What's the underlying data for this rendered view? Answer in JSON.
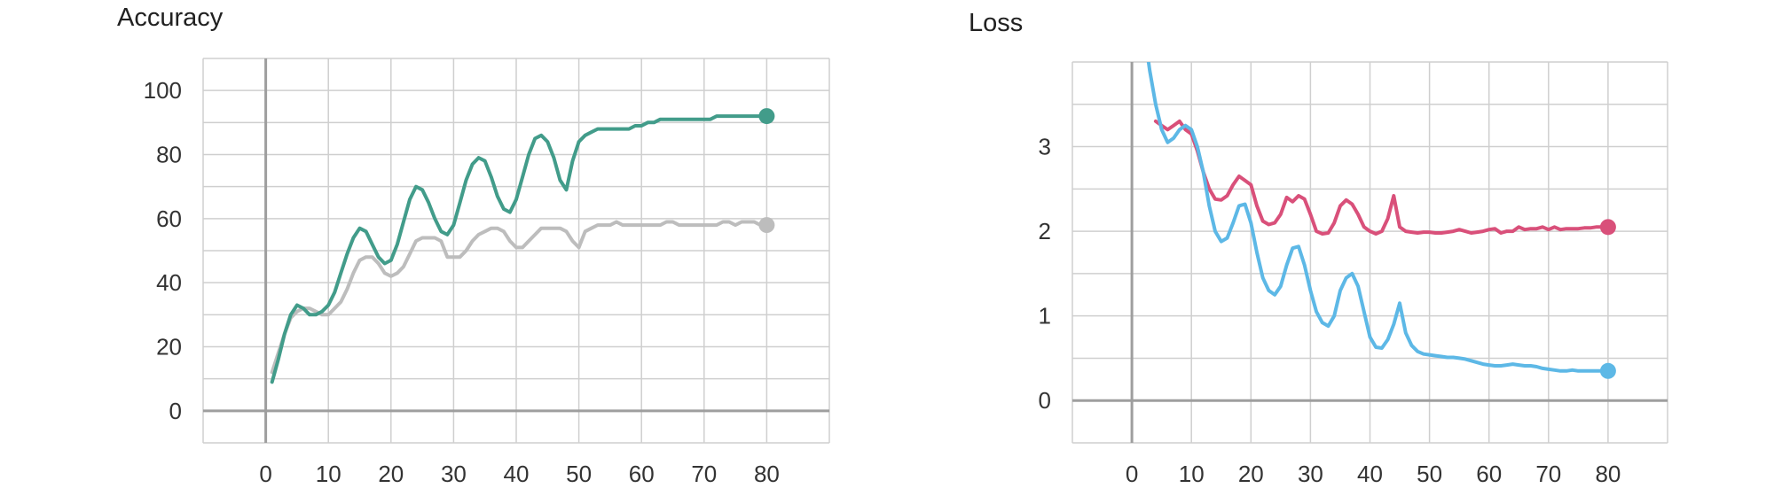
{
  "chart_data": [
    {
      "type": "line",
      "title": "Accuracy",
      "xlim": [
        -10,
        90
      ],
      "ylim": [
        -10,
        110
      ],
      "x_ticks": [
        0,
        10,
        20,
        30,
        40,
        50,
        60,
        70,
        80
      ],
      "y_ticks": [
        0,
        20,
        40,
        60,
        80,
        100
      ],
      "grid": true,
      "series": [
        {
          "color": "#bdbdbd",
          "x": [
            1,
            2,
            3,
            4,
            5,
            6,
            7,
            8,
            9,
            10,
            11,
            12,
            13,
            14,
            15,
            16,
            17,
            18,
            19,
            20,
            21,
            22,
            23,
            24,
            25,
            26,
            27,
            28,
            29,
            30,
            31,
            32,
            33,
            34,
            35,
            36,
            37,
            38,
            39,
            40,
            41,
            42,
            43,
            44,
            45,
            46,
            47,
            48,
            49,
            50,
            51,
            52,
            53,
            54,
            55,
            56,
            57,
            58,
            59,
            60,
            61,
            62,
            63,
            64,
            65,
            66,
            67,
            68,
            69,
            70,
            71,
            72,
            73,
            74,
            75,
            76,
            77,
            78,
            79,
            80
          ],
          "y": [
            12,
            18,
            24,
            29,
            31,
            32,
            32,
            31,
            30,
            30,
            32,
            34,
            38,
            43,
            47,
            48,
            48,
            46,
            43,
            42,
            43,
            45,
            49,
            53,
            54,
            54,
            54,
            53,
            48,
            48,
            48,
            50,
            53,
            55,
            56,
            57,
            57,
            56,
            53,
            51,
            51,
            53,
            55,
            57,
            57,
            57,
            57,
            56,
            53,
            51,
            56,
            57,
            58,
            58,
            58,
            59,
            58,
            58,
            58,
            58,
            58,
            58,
            58,
            59,
            59,
            58,
            58,
            58,
            58,
            58,
            58,
            58,
            59,
            59,
            58,
            59,
            59,
            59,
            58,
            58
          ]
        },
        {
          "color": "#429c8a",
          "x": [
            1,
            2,
            3,
            4,
            5,
            6,
            7,
            8,
            9,
            10,
            11,
            12,
            13,
            14,
            15,
            16,
            17,
            18,
            19,
            20,
            21,
            22,
            23,
            24,
            25,
            26,
            27,
            28,
            29,
            30,
            31,
            32,
            33,
            34,
            35,
            36,
            37,
            38,
            39,
            40,
            41,
            42,
            43,
            44,
            45,
            46,
            47,
            48,
            49,
            50,
            51,
            52,
            53,
            54,
            55,
            56,
            57,
            58,
            59,
            60,
            61,
            62,
            63,
            64,
            65,
            66,
            67,
            68,
            69,
            70,
            71,
            72,
            73,
            74,
            75,
            76,
            77,
            78,
            79,
            80
          ],
          "y": [
            9,
            16,
            24,
            30,
            33,
            32,
            30,
            30,
            31,
            33,
            37,
            43,
            49,
            54,
            57,
            56,
            52,
            48,
            46,
            47,
            52,
            59,
            66,
            70,
            69,
            65,
            60,
            56,
            55,
            58,
            65,
            72,
            77,
            79,
            78,
            73,
            67,
            63,
            62,
            66,
            73,
            80,
            85,
            86,
            84,
            79,
            72,
            69,
            78,
            84,
            86,
            87,
            88,
            88,
            88,
            88,
            88,
            88,
            89,
            89,
            90,
            90,
            91,
            91,
            91,
            91,
            91,
            91,
            91,
            91,
            91,
            92,
            92,
            92,
            92,
            92,
            92,
            92,
            92,
            92
          ]
        }
      ]
    },
    {
      "type": "line",
      "title": "Loss",
      "xlim": [
        -10,
        90
      ],
      "ylim": [
        -0.5,
        4
      ],
      "x_ticks": [
        0,
        10,
        20,
        30,
        40,
        50,
        60,
        70,
        80
      ],
      "y_ticks": [
        0,
        1,
        2,
        3
      ],
      "grid": true,
      "series": [
        {
          "color": "#d9507a",
          "x": [
            4,
            5,
            6,
            7,
            8,
            9,
            10,
            11,
            12,
            13,
            14,
            15,
            16,
            17,
            18,
            19,
            20,
            21,
            22,
            23,
            24,
            25,
            26,
            27,
            28,
            29,
            30,
            31,
            32,
            33,
            34,
            35,
            36,
            37,
            38,
            39,
            40,
            41,
            42,
            43,
            44,
            45,
            46,
            47,
            48,
            49,
            50,
            51,
            52,
            53,
            54,
            55,
            56,
            57,
            58,
            59,
            60,
            61,
            62,
            63,
            64,
            65,
            66,
            67,
            68,
            69,
            70,
            71,
            72,
            73,
            74,
            75,
            76,
            77,
            78,
            79,
            80
          ],
          "y": [
            3.3,
            3.25,
            3.2,
            3.25,
            3.3,
            3.2,
            3.15,
            2.95,
            2.7,
            2.5,
            2.38,
            2.37,
            2.42,
            2.55,
            2.65,
            2.6,
            2.55,
            2.3,
            2.12,
            2.08,
            2.1,
            2.2,
            2.4,
            2.35,
            2.42,
            2.38,
            2.2,
            2.0,
            1.97,
            1.98,
            2.1,
            2.3,
            2.37,
            2.32,
            2.2,
            2.05,
            2.0,
            1.97,
            2.0,
            2.15,
            2.42,
            2.05,
            2.0,
            1.99,
            1.98,
            1.99,
            1.99,
            1.98,
            1.98,
            1.99,
            2.0,
            2.02,
            2.0,
            1.98,
            1.99,
            2.0,
            2.02,
            2.03,
            1.98,
            2.0,
            2.0,
            2.05,
            2.02,
            2.03,
            2.03,
            2.05,
            2.02,
            2.05,
            2.02,
            2.03,
            2.03,
            2.03,
            2.04,
            2.04,
            2.05,
            2.05,
            2.05
          ]
        },
        {
          "color": "#5db8e6",
          "x": [
            1,
            2,
            3,
            4,
            5,
            6,
            7,
            8,
            9,
            10,
            11,
            12,
            13,
            14,
            15,
            16,
            17,
            18,
            19,
            20,
            21,
            22,
            23,
            24,
            25,
            26,
            27,
            28,
            29,
            30,
            31,
            32,
            33,
            34,
            35,
            36,
            37,
            38,
            39,
            40,
            41,
            42,
            43,
            44,
            45,
            46,
            47,
            48,
            49,
            50,
            51,
            52,
            53,
            54,
            55,
            56,
            57,
            58,
            59,
            60,
            61,
            62,
            63,
            64,
            65,
            66,
            67,
            68,
            69,
            70,
            71,
            72,
            73,
            74,
            75,
            76,
            77,
            78,
            79,
            80
          ],
          "y": [
            4.8,
            4.4,
            3.9,
            3.5,
            3.2,
            3.05,
            3.1,
            3.2,
            3.25,
            3.2,
            3.0,
            2.7,
            2.3,
            2.0,
            1.88,
            1.92,
            2.1,
            2.3,
            2.32,
            2.1,
            1.75,
            1.45,
            1.3,
            1.25,
            1.35,
            1.6,
            1.8,
            1.82,
            1.6,
            1.3,
            1.05,
            0.92,
            0.88,
            1.0,
            1.3,
            1.45,
            1.5,
            1.35,
            1.05,
            0.75,
            0.63,
            0.62,
            0.72,
            0.9,
            1.15,
            0.8,
            0.65,
            0.58,
            0.55,
            0.54,
            0.53,
            0.52,
            0.51,
            0.51,
            0.5,
            0.49,
            0.47,
            0.45,
            0.43,
            0.42,
            0.41,
            0.41,
            0.42,
            0.43,
            0.42,
            0.41,
            0.41,
            0.4,
            0.38,
            0.37,
            0.36,
            0.35,
            0.35,
            0.36,
            0.35,
            0.35,
            0.35,
            0.35,
            0.35,
            0.35
          ]
        }
      ]
    }
  ]
}
